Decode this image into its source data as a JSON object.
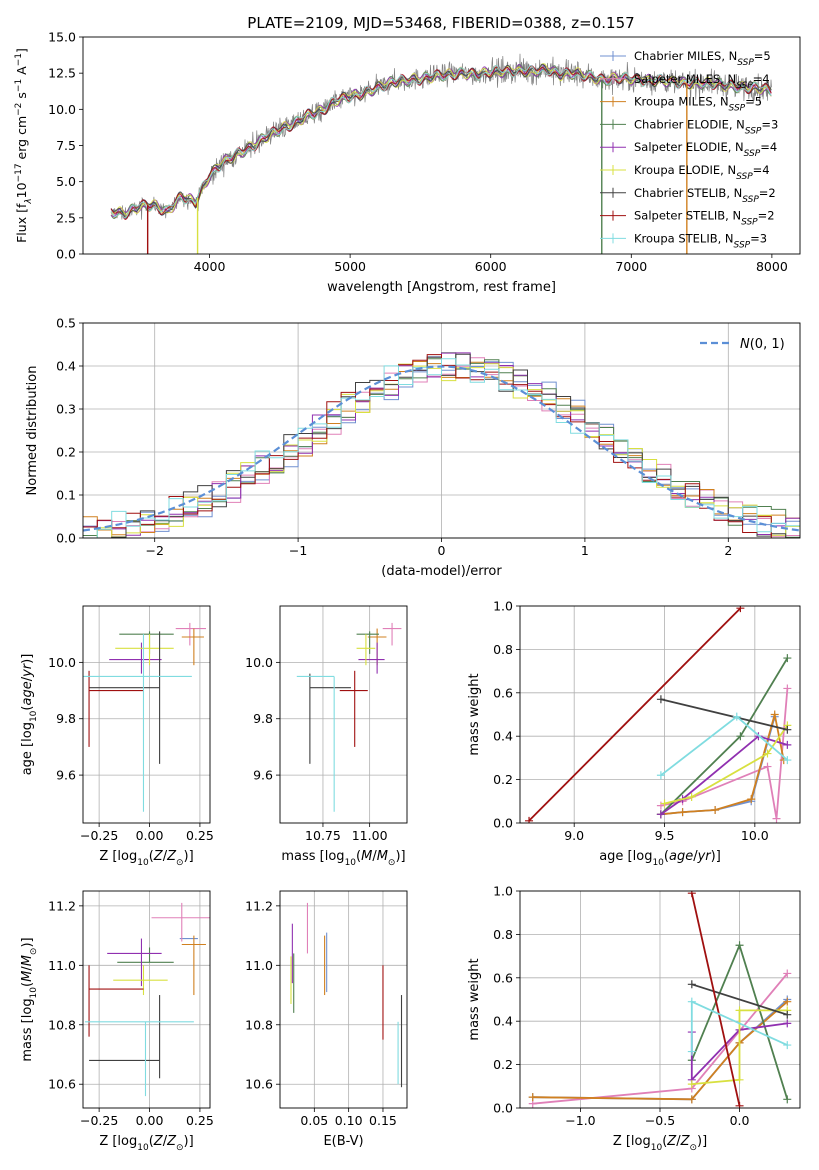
{
  "figure_title": "PLATE=2109, MJD=53468, FIBERID=0388, z=0.157",
  "series_colors": {
    "Chabrier MILES": "#7090d0",
    "Salpeter MILES": "#e080b8",
    "Kroupa MILES": "#d08020",
    "Chabrier ELODIE": "#508050",
    "Salpeter ELODIE": "#9030b0",
    "Kroupa ELODIE": "#d8e040",
    "Chabrier STELIB": "#404040",
    "Salpeter STELIB": "#a01010",
    "Kroupa STELIB": "#80dce0",
    "data": "#808080",
    "gaussian": "#5b8fd6"
  },
  "chart_data": [
    {
      "id": "spectrum",
      "type": "line",
      "xlabel": "wavelength [Angstrom, rest frame]",
      "ylabel": "Flux [f_λ10^-17 erg cm^-2 s^-1 A^-1]",
      "ylabel_parts": {
        "main": "Flux [f",
        "sub1": "λ",
        "mid": "10",
        "sup1": "−17",
        "rest1": " erg cm",
        "sup2": "−2",
        "rest2": " s",
        "sup3": "−1",
        "rest3": " A",
        "sup4": "−1",
        "end": "]"
      },
      "xlim": [
        3100,
        8200
      ],
      "ylim": [
        0,
        15
      ],
      "xticks": [
        4000,
        5000,
        6000,
        7000,
        8000
      ],
      "yticks": [
        0.0,
        2.5,
        5.0,
        7.5,
        10.0,
        12.5,
        15.0
      ],
      "grid": false,
      "legend_position": "top-right",
      "legend": [
        {
          "name": "Chabrier MILES",
          "nssp": "5"
        },
        {
          "name": "Salpeter MILES",
          "nssp": "4"
        },
        {
          "name": "Kroupa MILES",
          "nssp": "5"
        },
        {
          "name": "Chabrier ELODIE",
          "nssp": "3"
        },
        {
          "name": "Salpeter ELODIE",
          "nssp": "4"
        },
        {
          "name": "Kroupa ELODIE",
          "nssp": "4"
        },
        {
          "name": "Chabrier STELIB",
          "nssp": "2"
        },
        {
          "name": "Salpeter STELIB",
          "nssp": "2"
        },
        {
          "name": "Kroupa STELIB",
          "nssp": "3"
        }
      ],
      "continuum": {
        "x": [
          3300,
          3400,
          3500,
          3600,
          3700,
          3800,
          3900,
          4000,
          4100,
          4200,
          4300,
          4400,
          4500,
          4600,
          4700,
          4800,
          4900,
          5000,
          5100,
          5200,
          5300,
          5400,
          5500,
          5600,
          5700,
          5800,
          5900,
          6000,
          6100,
          6200,
          6300,
          6400,
          6500,
          6600,
          6700,
          6800,
          6900,
          7000,
          7100,
          7200,
          7300,
          7400,
          7500,
          7600,
          7700,
          7800,
          7900,
          8000
        ],
        "y": [
          2.9,
          2.8,
          3.3,
          3.4,
          2.9,
          4.0,
          3.6,
          5.4,
          6.4,
          6.9,
          7.4,
          8.1,
          8.6,
          9.0,
          9.6,
          9.9,
          10.6,
          10.9,
          11.1,
          11.5,
          11.9,
          12.0,
          12.1,
          12.3,
          12.4,
          12.5,
          12.4,
          12.6,
          12.6,
          12.7,
          12.6,
          12.8,
          12.4,
          12.5,
          12.3,
          12.0,
          12.2,
          12.1,
          12.0,
          12.0,
          11.9,
          11.8,
          11.8,
          11.8,
          11.6,
          11.5,
          11.5,
          11.3
        ]
      }
    },
    {
      "id": "residual-histogram",
      "type": "bar",
      "xlabel": "(data-model)/error",
      "ylabel": "Normed distribution",
      "xlim": [
        -2.5,
        2.5
      ],
      "ylim": [
        0,
        0.5
      ],
      "xticks": [
        -2,
        -1,
        0,
        1,
        2
      ],
      "yticks": [
        0.0,
        0.1,
        0.2,
        0.3,
        0.4,
        0.5
      ],
      "grid": true,
      "bin_width": 0.1,
      "legend_position": "top-right",
      "gaussian_label": "N(0,1)",
      "gaussian_mean": 0.0,
      "gaussian_sigma": 1.0
    },
    {
      "id": "age-vs-Z",
      "type": "scatter",
      "xlabel": "Z [log10(Z/Z⊙)]",
      "ylabel": "age  [log10(age/yr)]",
      "xlim": [
        -0.33,
        0.3
      ],
      "ylim": [
        9.43,
        10.2
      ],
      "xticks": [
        -0.25,
        0.0,
        0.25
      ],
      "yticks": [
        9.6,
        9.8,
        10.0
      ],
      "grid": true,
      "points": [
        {
          "series": "Chabrier MILES",
          "x": 0.15,
          "y": 10.12,
          "xerr": [
            0.0,
            0.0
          ],
          "yerr": [
            0.0,
            0.0
          ]
        },
        {
          "series": "Salpeter MILES",
          "x": 0.2,
          "y": 10.12,
          "xerr": [
            0.07,
            0.08
          ],
          "yerr": [
            0.06,
            0.02
          ]
        },
        {
          "series": "Kroupa MILES",
          "x": 0.22,
          "y": 10.09,
          "xerr": [
            0.06,
            0.05
          ],
          "yerr": [
            0.1,
            0.03
          ]
        },
        {
          "series": "Chabrier ELODIE",
          "x": 0.0,
          "y": 10.1,
          "xerr": [
            0.15,
            0.12
          ],
          "yerr": [
            0.07,
            0.01
          ]
        },
        {
          "series": "Salpeter ELODIE",
          "x": -0.04,
          "y": 10.01,
          "xerr": [
            0.16,
            0.1
          ],
          "yerr": [
            0.05,
            0.06
          ]
        },
        {
          "series": "Kroupa ELODIE",
          "x": 0.0,
          "y": 10.05,
          "xerr": [
            0.17,
            0.12
          ],
          "yerr": [
            0.06,
            0.05
          ]
        },
        {
          "series": "Chabrier STELIB",
          "x": 0.05,
          "y": 9.91,
          "xerr": [
            0.35,
            0.0
          ],
          "yerr": [
            0.27,
            0.2
          ]
        },
        {
          "series": "Salpeter STELIB",
          "x": -0.3,
          "y": 9.9,
          "xerr": [
            0.0,
            0.27
          ],
          "yerr": [
            0.2,
            0.07
          ]
        },
        {
          "series": "Kroupa STELIB",
          "x": -0.03,
          "y": 9.95,
          "xerr": [
            0.3,
            0.24
          ],
          "yerr": [
            0.48,
            0.15
          ]
        }
      ]
    },
    {
      "id": "age-vs-mass",
      "type": "scatter",
      "xlabel": "mass [log10(M/M⊙)]",
      "ylabel": "",
      "xlim": [
        10.52,
        11.2
      ],
      "ylim": [
        9.43,
        10.2
      ],
      "xticks": [
        10.75,
        11.0
      ],
      "yticks": [
        9.6,
        9.8,
        10.0
      ],
      "grid": true,
      "points": [
        {
          "series": "Chabrier MILES",
          "x": 11.07,
          "y": 10.12,
          "xerr": [
            0.0,
            0.0
          ],
          "yerr": [
            0.0,
            0.0
          ]
        },
        {
          "series": "Salpeter MILES",
          "x": 11.12,
          "y": 10.12,
          "xerr": [
            0.05,
            0.05
          ],
          "yerr": [
            0.06,
            0.02
          ]
        },
        {
          "series": "Kroupa MILES",
          "x": 11.04,
          "y": 10.09,
          "xerr": [
            0.05,
            0.05
          ],
          "yerr": [
            0.1,
            0.03
          ]
        },
        {
          "series": "Chabrier ELODIE",
          "x": 11.0,
          "y": 10.1,
          "xerr": [
            0.07,
            0.05
          ],
          "yerr": [
            0.07,
            0.01
          ]
        },
        {
          "series": "Salpeter ELODIE",
          "x": 11.04,
          "y": 10.01,
          "xerr": [
            0.1,
            0.04
          ],
          "yerr": [
            0.05,
            0.06
          ]
        },
        {
          "series": "Kroupa ELODIE",
          "x": 10.98,
          "y": 10.05,
          "xerr": [
            0.05,
            0.05
          ],
          "yerr": [
            0.06,
            0.05
          ]
        },
        {
          "series": "Chabrier STELIB",
          "x": 10.68,
          "y": 9.91,
          "xerr": [
            0.0,
            0.22
          ],
          "yerr": [
            0.27,
            0.05
          ]
        },
        {
          "series": "Salpeter STELIB",
          "x": 10.92,
          "y": 9.9,
          "xerr": [
            0.08,
            0.07
          ],
          "yerr": [
            0.2,
            0.07
          ]
        },
        {
          "series": "Kroupa STELIB",
          "x": 10.81,
          "y": 9.95,
          "xerr": [
            0.2,
            0.0
          ],
          "yerr": [
            0.48,
            0.0
          ]
        }
      ]
    },
    {
      "id": "mass-weight-vs-age",
      "type": "line",
      "xlabel": "age  [log10(age/yr)]",
      "ylabel": "mass weight",
      "xlim": [
        8.7,
        10.25
      ],
      "ylim": [
        0,
        1
      ],
      "xticks": [
        9.0,
        9.5,
        10.0
      ],
      "yticks": [
        0.0,
        0.2,
        0.4,
        0.6,
        0.8,
        1.0
      ],
      "grid": true,
      "series": [
        {
          "name": "Chabrier MILES",
          "x": [
            9.48,
            9.6,
            9.78,
            9.98,
            10.11
          ],
          "y": [
            0.04,
            0.05,
            0.06,
            0.1,
            0.49
          ]
        },
        {
          "name": "Salpeter MILES",
          "x": [
            9.48,
            9.6,
            10.07,
            10.12,
            10.18
          ],
          "y": [
            0.08,
            0.1,
            0.26,
            0.02,
            0.62
          ]
        },
        {
          "name": "Kroupa MILES",
          "x": [
            9.48,
            9.6,
            9.78,
            9.98,
            10.11,
            10.16
          ],
          "y": [
            0.04,
            0.05,
            0.06,
            0.11,
            0.5,
            0.29
          ]
        },
        {
          "name": "Chabrier ELODIE",
          "x": [
            9.48,
            9.92,
            10.18
          ],
          "y": [
            0.04,
            0.4,
            0.76
          ]
        },
        {
          "name": "Salpeter ELODIE",
          "x": [
            9.48,
            9.6,
            10.02,
            10.18
          ],
          "y": [
            0.04,
            0.11,
            0.4,
            0.36
          ]
        },
        {
          "name": "Kroupa ELODIE",
          "x": [
            9.5,
            9.65,
            10.07,
            10.18
          ],
          "y": [
            0.09,
            0.12,
            0.32,
            0.45
          ]
        },
        {
          "name": "Chabrier STELIB",
          "x": [
            9.48,
            10.18
          ],
          "y": [
            0.57,
            0.43
          ]
        },
        {
          "name": "Salpeter STELIB",
          "x": [
            8.75,
            9.92
          ],
          "y": [
            0.01,
            0.99
          ]
        },
        {
          "name": "Kroupa STELIB",
          "x": [
            9.48,
            9.9,
            10.18
          ],
          "y": [
            0.22,
            0.49,
            0.29
          ]
        }
      ]
    },
    {
      "id": "mass-vs-Z",
      "type": "scatter",
      "xlabel": "Z [log10(Z/Z⊙)]",
      "ylabel": "mass [log10(M/M⊙)]",
      "xlim": [
        -0.33,
        0.3
      ],
      "ylim": [
        10.52,
        11.25
      ],
      "xticks": [
        -0.25,
        0.0,
        0.25
      ],
      "yticks": [
        10.6,
        10.8,
        11.0,
        11.2
      ],
      "grid": true,
      "points": [
        {
          "series": "Chabrier MILES",
          "x": 0.2,
          "y": 11.09,
          "xerr": [
            0.05,
            0.04
          ],
          "yerr": [
            0.0,
            0.0
          ]
        },
        {
          "series": "Salpeter MILES",
          "x": 0.16,
          "y": 11.16,
          "xerr": [
            0.15,
            0.14
          ],
          "yerr": [
            0.08,
            0.05
          ]
        },
        {
          "series": "Kroupa MILES",
          "x": 0.22,
          "y": 11.07,
          "xerr": [
            0.06,
            0.06
          ],
          "yerr": [
            0.17,
            0.03
          ]
        },
        {
          "series": "Chabrier ELODIE",
          "x": 0.0,
          "y": 11.01,
          "xerr": [
            0.16,
            0.12
          ],
          "yerr": [
            0.0,
            0.05
          ]
        },
        {
          "series": "Salpeter ELODIE",
          "x": -0.04,
          "y": 11.04,
          "xerr": [
            0.17,
            0.1
          ],
          "yerr": [
            0.11,
            0.05
          ]
        },
        {
          "series": "Kroupa ELODIE",
          "x": -0.03,
          "y": 10.95,
          "xerr": [
            0.15,
            0.12
          ],
          "yerr": [
            0.05,
            0.05
          ]
        },
        {
          "series": "Chabrier STELIB",
          "x": 0.05,
          "y": 10.68,
          "xerr": [
            0.35,
            0.0
          ],
          "yerr": [
            0.06,
            0.22
          ]
        },
        {
          "series": "Salpeter STELIB",
          "x": -0.3,
          "y": 10.92,
          "xerr": [
            0.0,
            0.27
          ],
          "yerr": [
            0.16,
            0.08
          ]
        },
        {
          "series": "Kroupa STELIB",
          "x": -0.02,
          "y": 10.81,
          "xerr": [
            0.3,
            0.24
          ],
          "yerr": [
            0.25,
            0.0
          ]
        }
      ]
    },
    {
      "id": "mass-vs-ebv",
      "type": "scatter",
      "xlabel": "E(B-V)",
      "ylabel": "",
      "xlim": [
        0.0,
        0.185
      ],
      "ylim": [
        10.52,
        11.25
      ],
      "xticks": [
        0.05,
        0.1,
        0.15
      ],
      "xtick_labels": [
        "0.05",
        "0.10",
        "0.15"
      ],
      "yticks": [
        10.6,
        10.8,
        11.0,
        11.2
      ],
      "grid": true,
      "points": [
        {
          "series": "Chabrier MILES",
          "x": 0.068,
          "y": 11.01,
          "yerr": [
            0.1,
            0.1
          ]
        },
        {
          "series": "Salpeter MILES",
          "x": 0.04,
          "y": 11.12,
          "yerr": [
            0.08,
            0.09
          ]
        },
        {
          "series": "Kroupa MILES",
          "x": 0.065,
          "y": 11.0,
          "yerr": [
            0.1,
            0.1
          ]
        },
        {
          "series": "Chabrier ELODIE",
          "x": 0.02,
          "y": 10.94,
          "yerr": [
            0.1,
            0.1
          ]
        },
        {
          "series": "Salpeter ELODIE",
          "x": 0.018,
          "y": 11.04,
          "yerr": [
            0.1,
            0.1
          ]
        },
        {
          "series": "Kroupa ELODIE",
          "x": 0.016,
          "y": 10.95,
          "yerr": [
            0.08,
            0.08
          ]
        },
        {
          "series": "Chabrier STELIB",
          "x": 0.177,
          "y": 10.74,
          "yerr": [
            0.15,
            0.16
          ]
        },
        {
          "series": "Salpeter STELIB",
          "x": 0.15,
          "y": 10.84,
          "yerr": [
            0.09,
            0.16
          ]
        },
        {
          "series": "Kroupa STELIB",
          "x": 0.172,
          "y": 10.7,
          "yerr": [
            0.1,
            0.11
          ]
        }
      ]
    },
    {
      "id": "mass-weight-vs-Z",
      "type": "line",
      "xlabel": "Z [log10(Z/Z⊙)]",
      "ylabel": "mass weight",
      "xlim": [
        -1.38,
        0.38
      ],
      "ylim": [
        0,
        1
      ],
      "xticks": [
        -1.0,
        -0.5,
        0.0
      ],
      "yticks": [
        0.0,
        0.2,
        0.4,
        0.6,
        0.8,
        1.0
      ],
      "grid": true,
      "series": [
        {
          "name": "Chabrier MILES",
          "x": [
            -1.3,
            -0.3,
            0.0,
            0.3
          ],
          "y": [
            0.05,
            0.04,
            0.3,
            0.5
          ]
        },
        {
          "name": "Salpeter MILES",
          "x": [
            -1.3,
            -0.3,
            0.3
          ],
          "y": [
            0.02,
            0.09,
            0.62
          ]
        },
        {
          "name": "Kroupa MILES",
          "x": [
            -1.3,
            -0.3,
            0.0,
            0.3
          ],
          "y": [
            0.05,
            0.04,
            0.3,
            0.49
          ]
        },
        {
          "name": "Chabrier ELODIE",
          "x": [
            -0.3,
            0.0,
            0.3
          ],
          "y": [
            0.22,
            0.75,
            0.04
          ]
        },
        {
          "name": "Salpeter ELODIE",
          "x": [
            -0.3,
            -0.3,
            0.0,
            0.3
          ],
          "y": [
            0.35,
            0.13,
            0.36,
            0.39
          ]
        },
        {
          "name": "Kroupa ELODIE",
          "x": [
            -0.3,
            0.0,
            0.0,
            0.3
          ],
          "y": [
            0.11,
            0.13,
            0.45,
            0.45
          ]
        },
        {
          "name": "Chabrier STELIB",
          "x": [
            -0.3,
            0.3
          ],
          "y": [
            0.57,
            0.43
          ]
        },
        {
          "name": "Salpeter STELIB",
          "x": [
            -0.3,
            0.0
          ],
          "y": [
            0.99,
            0.01
          ]
        },
        {
          "name": "Kroupa STELIB",
          "x": [
            -0.3,
            -0.3,
            0.3
          ],
          "y": [
            0.26,
            0.49,
            0.29
          ]
        }
      ]
    }
  ]
}
